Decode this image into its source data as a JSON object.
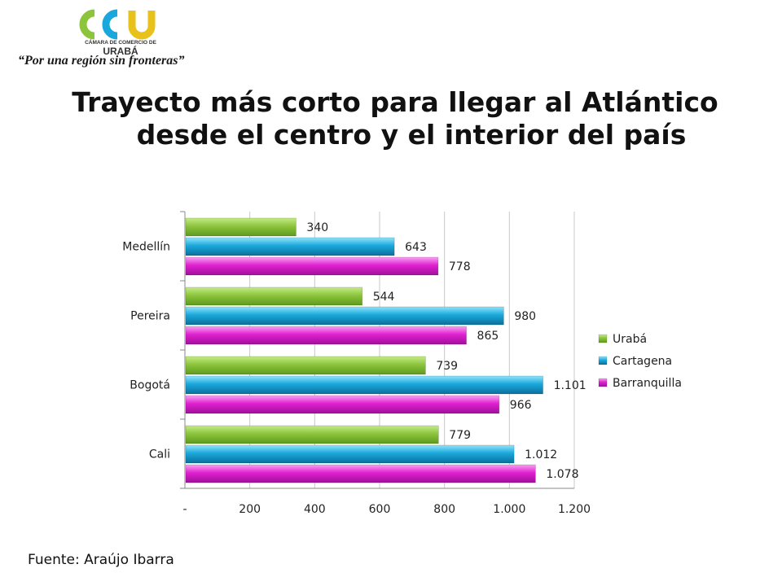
{
  "header": {
    "logo_text": "CCU",
    "logo_org": "CÁMARA DE COMERCIO DE",
    "logo_region": "URABÁ",
    "tagline": "“Por una región sin fronteras”"
  },
  "title_line1": "Trayecto más corto para llegar al Atlántico",
  "title_line2": "desde el centro y el interior del país",
  "source": "Fuente: Araújo Ibarra",
  "colors": {
    "uraba": "#8cc43c",
    "cartagena": "#1aa8dc",
    "barranquilla": "#e020d0"
  },
  "chart_data": {
    "type": "bar",
    "orientation": "horizontal",
    "categories": [
      "Medellín",
      "Pereira",
      "Bogotá",
      "Cali"
    ],
    "series": [
      {
        "name": "Urabá",
        "values": [
          340,
          544,
          739,
          779
        ],
        "labels": [
          "340",
          "544",
          "739",
          "779"
        ]
      },
      {
        "name": "Cartagena",
        "values": [
          643,
          980,
          1101,
          1012
        ],
        "labels": [
          "643",
          "980",
          "1.101",
          "1.012"
        ]
      },
      {
        "name": "Barranquilla",
        "values": [
          778,
          865,
          966,
          1078
        ],
        "labels": [
          "778",
          "865",
          "966",
          "1.078"
        ]
      }
    ],
    "x_ticks": [
      0,
      200,
      400,
      600,
      800,
      1000,
      1200
    ],
    "x_tick_labels": [
      "-",
      "200",
      "400",
      "600",
      "800",
      "1.000",
      "1.200"
    ],
    "xlim": [
      0,
      1200
    ],
    "grid": "vertical",
    "legend_position": "right",
    "title": "",
    "xlabel": "",
    "ylabel": ""
  }
}
